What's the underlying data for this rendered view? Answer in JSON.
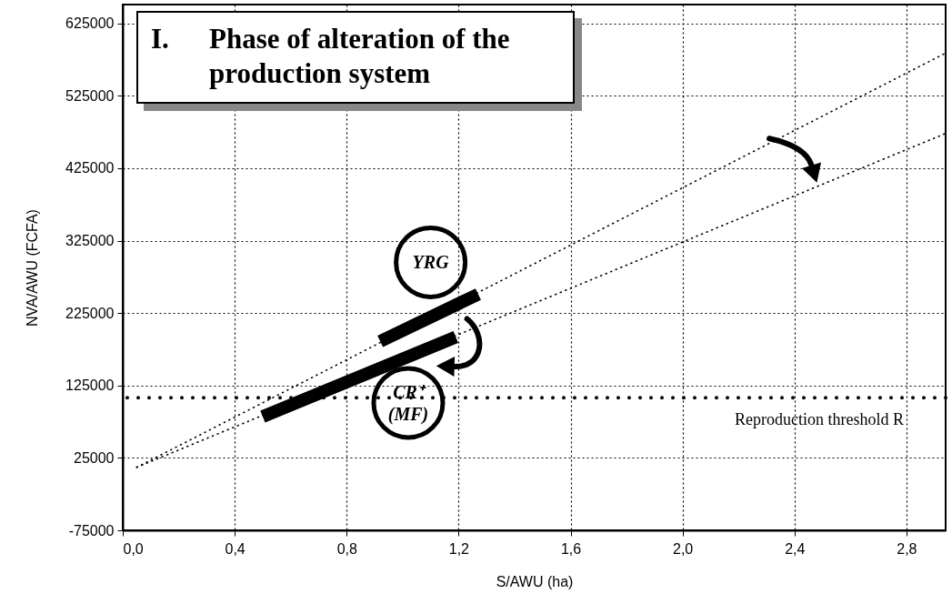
{
  "chart_data": {
    "type": "line",
    "title": "I. Phase of alteration of the production system",
    "xlabel": "S/AWU (ha)",
    "ylabel": "NVA/AWU (FCFA)",
    "xlim": [
      0,
      2.94
    ],
    "ylim": [
      -75000,
      651000
    ],
    "xticks": [
      {
        "value": 0,
        "label": "0,0"
      },
      {
        "value": 0.4,
        "label": "0,4"
      },
      {
        "value": 0.8,
        "label": "0,8"
      },
      {
        "value": 1.2,
        "label": "1,2"
      },
      {
        "value": 1.6,
        "label": "1,6"
      },
      {
        "value": 2,
        "label": "2,0"
      },
      {
        "value": 2.4,
        "label": "2,4"
      },
      {
        "value": 2.8,
        "label": "2,8"
      }
    ],
    "yticks": [
      -75000,
      25000,
      125000,
      225000,
      325000,
      425000,
      525000,
      625000
    ],
    "grid": true,
    "marker": "none",
    "series": [
      {
        "color": "#000000",
        "line_style": "dotted",
        "x": [
          0.05,
          2.94
        ],
        "values": [
          12000,
          584000
        ]
      },
      {
        "color": "#000000",
        "line_style": "dotted",
        "x": [
          0.05,
          2.94
        ],
        "values": [
          12000,
          473000
        ]
      },
      {
        "color": "#000000",
        "line_style": "solid",
        "x": [
          0.5,
          1.19
        ],
        "values": [
          82000,
          192000
        ]
      },
      {
        "color": "#000000",
        "line_style": "solid",
        "x": [
          0.92,
          1.27
        ],
        "values": [
          186000,
          251000
        ]
      }
    ],
    "ref_lines": [
      {
        "axis": "y",
        "value": 108000,
        "label": "Reproduction threshold R",
        "color": "#000000",
        "line_style": "dotted"
      }
    ],
    "annotations": [
      "YRG",
      "CR⁺ (MF)"
    ]
  }
}
